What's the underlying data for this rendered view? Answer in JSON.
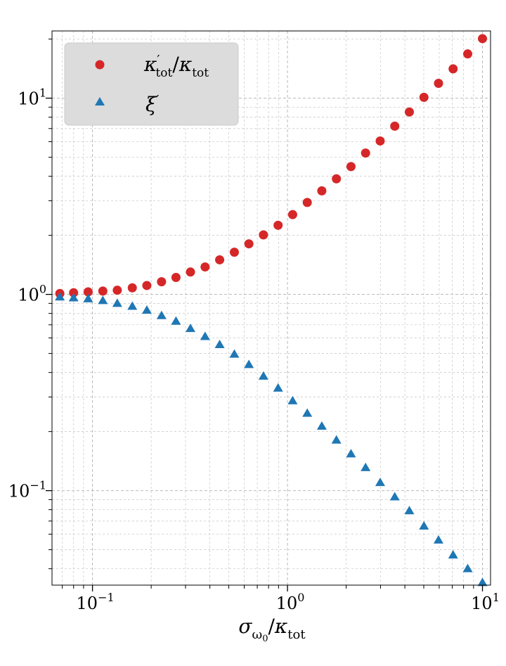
{
  "chart_data": {
    "type": "scatter",
    "xscale": "log",
    "yscale": "log",
    "xlim": [
      0.062,
      11.0
    ],
    "ylim": [
      0.033,
      22.0
    ],
    "grid": true,
    "legend_position": "top-left",
    "xlabel": "σ_ω₀/κ_tot",
    "ylabel": "",
    "xticks": [
      {
        "value": 0.1,
        "label": "10^{-1}"
      },
      {
        "value": 1,
        "label": "10^{0}"
      },
      {
        "value": 10,
        "label": "10^{1}"
      }
    ],
    "yticks": [
      {
        "value": 0.1,
        "label": "10^{-1}"
      },
      {
        "value": 1,
        "label": "10^{0}"
      },
      {
        "value": 10,
        "label": "10^{1}"
      }
    ],
    "x": [
      0.068,
      0.08,
      0.095,
      0.113,
      0.134,
      0.16,
      0.19,
      0.226,
      0.268,
      0.318,
      0.378,
      0.449,
      0.534,
      0.634,
      0.753,
      0.895,
      1.063,
      1.263,
      1.5,
      1.782,
      2.117,
      2.515,
      2.988,
      3.55,
      4.217,
      5.01,
      5.951,
      7.07,
      8.399,
      10.0
    ],
    "series": [
      {
        "name": "κ'_tot/κ_tot",
        "marker": "circle",
        "color": "#d62728",
        "values": [
          1.01,
          1.02,
          1.03,
          1.04,
          1.05,
          1.08,
          1.11,
          1.16,
          1.22,
          1.3,
          1.38,
          1.5,
          1.64,
          1.81,
          2.01,
          2.25,
          2.55,
          2.94,
          3.37,
          3.88,
          4.48,
          5.25,
          6.05,
          7.2,
          8.5,
          10.1,
          11.9,
          14.1,
          16.8,
          20.1
        ]
      },
      {
        "name": "ξ'",
        "marker": "triangle",
        "color": "#1f77b4",
        "values": [
          0.97,
          0.96,
          0.95,
          0.93,
          0.9,
          0.87,
          0.83,
          0.78,
          0.73,
          0.67,
          0.61,
          0.555,
          0.496,
          0.439,
          0.383,
          0.333,
          0.287,
          0.248,
          0.213,
          0.181,
          0.154,
          0.131,
          0.11,
          0.093,
          0.079,
          0.066,
          0.056,
          0.047,
          0.04,
          0.034
        ]
      }
    ]
  }
}
